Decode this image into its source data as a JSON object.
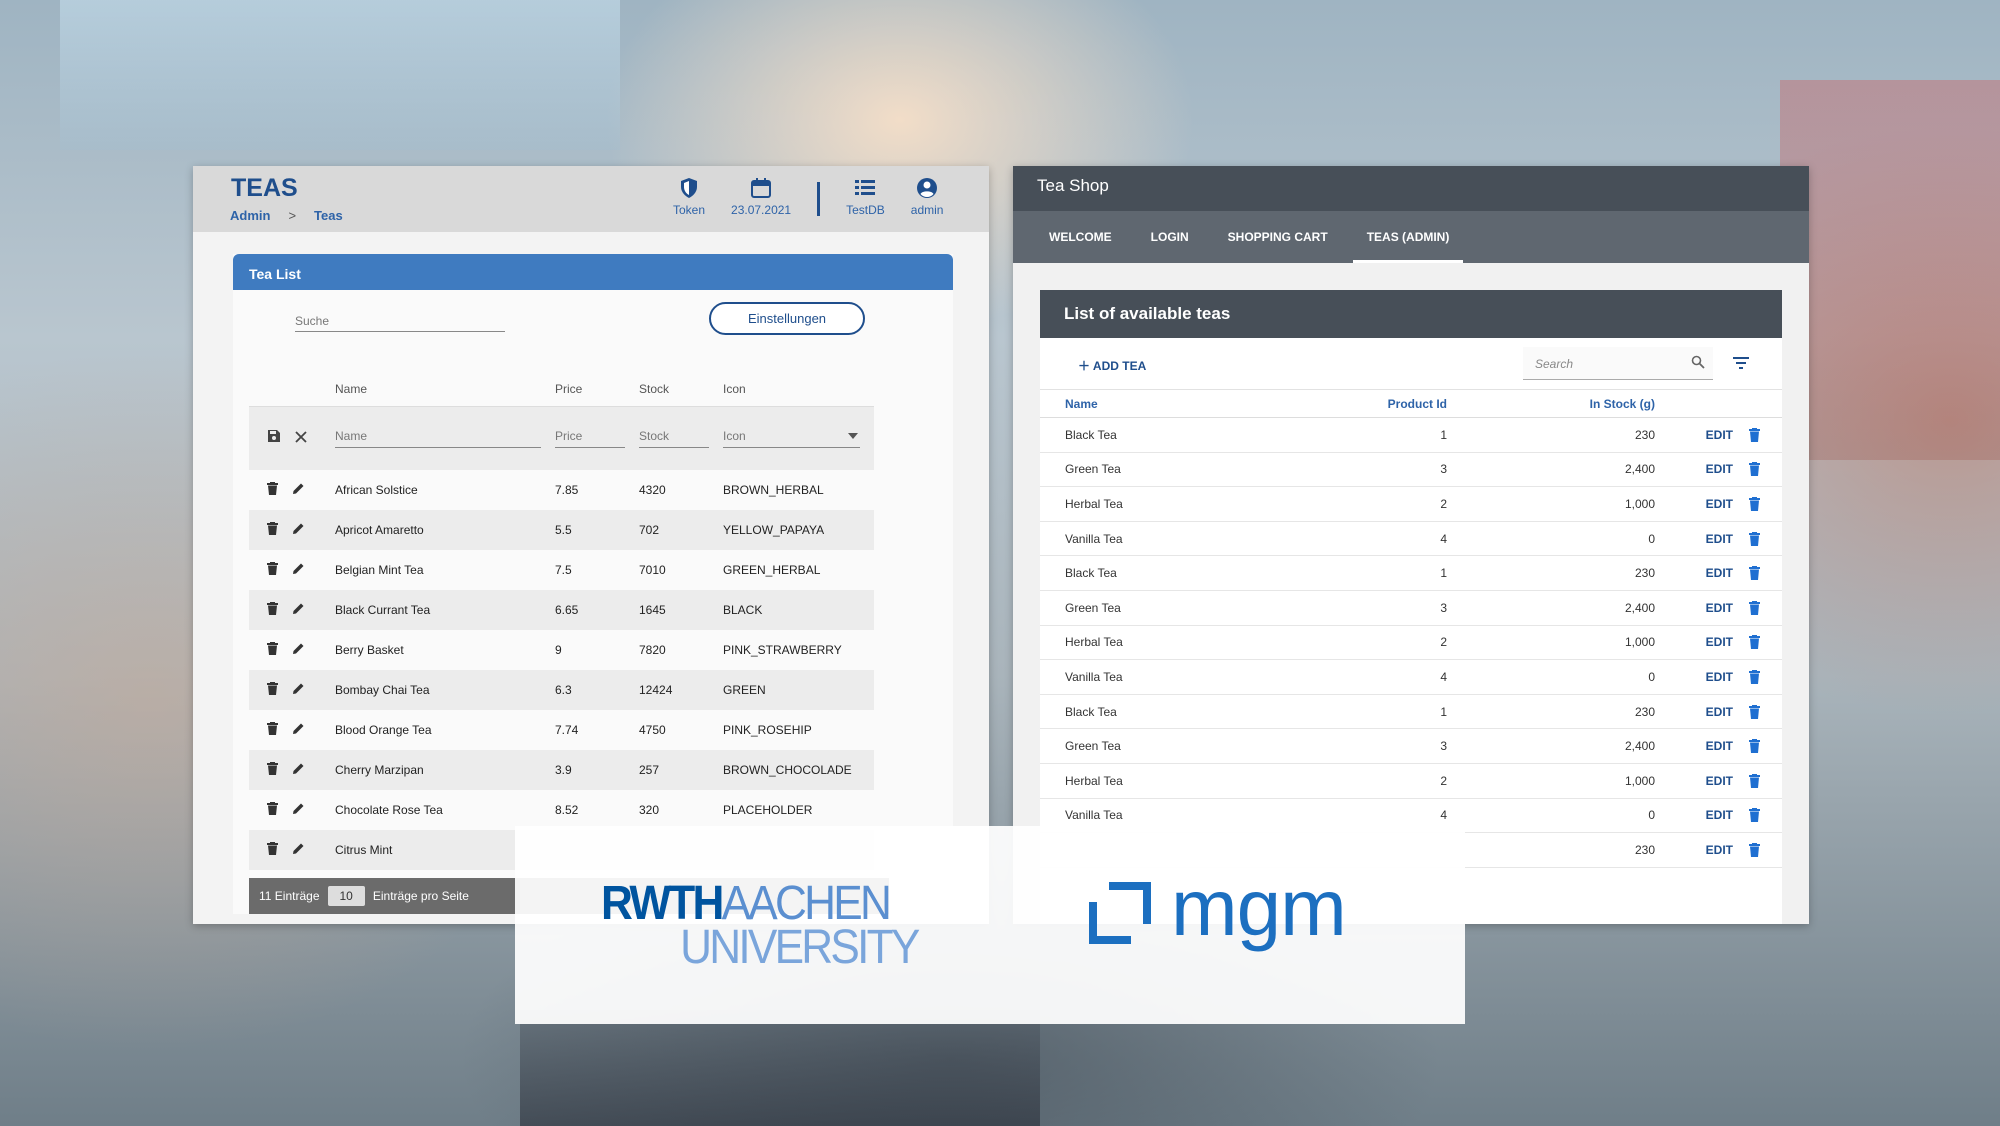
{
  "left_app": {
    "title": "TEAS",
    "breadcrumb": [
      "Admin",
      ">",
      "Teas"
    ],
    "tools": [
      {
        "icon": "shield-icon",
        "label": "Token"
      },
      {
        "icon": "calendar-icon",
        "label": "23.07.2021"
      },
      {
        "icon": "database-list-icon",
        "label": "TestDB"
      },
      {
        "icon": "user-circle-icon",
        "label": "admin"
      }
    ],
    "card_title": "Tea List",
    "search_placeholder": "Suche",
    "settings_label": "Einstellungen",
    "columns": [
      "Name",
      "Price",
      "Stock",
      "Icon"
    ],
    "edit_row": {
      "name": "Name",
      "price": "Price",
      "stock": "Stock",
      "icon": "Icon"
    },
    "rows": [
      {
        "name": "African Solstice",
        "price": "7.85",
        "stock": "4320",
        "icon": "BROWN_HERBAL"
      },
      {
        "name": "Apricot Amaretto",
        "price": "5.5",
        "stock": "702",
        "icon": "YELLOW_PAPAYA"
      },
      {
        "name": "Belgian Mint Tea",
        "price": "7.5",
        "stock": "7010",
        "icon": "GREEN_HERBAL"
      },
      {
        "name": "Black Currant Tea",
        "price": "6.65",
        "stock": "1645",
        "icon": "BLACK"
      },
      {
        "name": "Berry Basket",
        "price": "9",
        "stock": "7820",
        "icon": "PINK_STRAWBERRY"
      },
      {
        "name": "Bombay Chai Tea",
        "price": "6.3",
        "stock": "12424",
        "icon": "GREEN"
      },
      {
        "name": "Blood Orange Tea",
        "price": "7.74",
        "stock": "4750",
        "icon": "PINK_ROSEHIP"
      },
      {
        "name": "Cherry Marzipan",
        "price": "3.9",
        "stock": "257",
        "icon": "BROWN_CHOCOLADE"
      },
      {
        "name": "Chocolate Rose Tea",
        "price": "8.52",
        "stock": "320",
        "icon": "PLACEHOLDER"
      },
      {
        "name": "Citrus Mint",
        "price": "",
        "stock": "",
        "icon": ""
      }
    ],
    "footer": {
      "count": "11 Einträge",
      "per_page": "10",
      "per_page_label": "Einträge pro Seite"
    }
  },
  "right_app": {
    "title": "Tea Shop",
    "tabs": [
      "WELCOME",
      "LOGIN",
      "SHOPPING CART",
      "TEAS (ADMIN)"
    ],
    "active_tab": 3,
    "card_title": "List of available teas",
    "add_label": "ADD TEA",
    "search_placeholder": "Search",
    "columns": [
      "Name",
      "Product Id",
      "In Stock (g)"
    ],
    "edit_label": "EDIT",
    "rows": [
      {
        "name": "Black Tea",
        "pid": "1",
        "stock": "230"
      },
      {
        "name": "Green Tea",
        "pid": "3",
        "stock": "2,400"
      },
      {
        "name": "Herbal Tea",
        "pid": "2",
        "stock": "1,000"
      },
      {
        "name": "Vanilla Tea",
        "pid": "4",
        "stock": "0"
      },
      {
        "name": "Black Tea",
        "pid": "1",
        "stock": "230"
      },
      {
        "name": "Green Tea",
        "pid": "3",
        "stock": "2,400"
      },
      {
        "name": "Herbal Tea",
        "pid": "2",
        "stock": "1,000"
      },
      {
        "name": "Vanilla Tea",
        "pid": "4",
        "stock": "0"
      },
      {
        "name": "Black Tea",
        "pid": "1",
        "stock": "230"
      },
      {
        "name": "Green Tea",
        "pid": "3",
        "stock": "2,400"
      },
      {
        "name": "Herbal Tea",
        "pid": "2",
        "stock": "1,000"
      },
      {
        "name": "Vanilla Tea",
        "pid": "4",
        "stock": "0"
      },
      {
        "name": "",
        "pid": "",
        "stock": "230"
      }
    ]
  },
  "logos": {
    "rwth_line1_a": "RWTH",
    "rwth_line1_b": "AACHEN",
    "rwth_line2": "UNIVERSITY",
    "mgm": "mgm"
  },
  "colors": {
    "primary_blue": "#1f4e8c",
    "card_header_blue": "#3f7bc0",
    "shop_dark": "#474f58"
  }
}
